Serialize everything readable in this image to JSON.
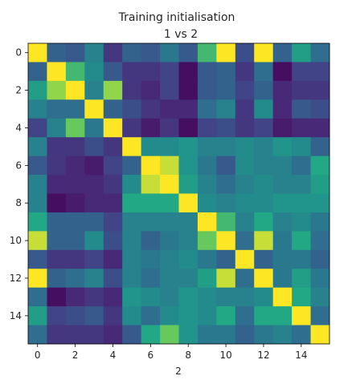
{
  "chart_data": {
    "type": "heatmap",
    "title": "Training initialisation",
    "subtitle": "1 vs 2",
    "xlabel": "2",
    "ylabel": "",
    "colormap": "viridis",
    "value_range": [
      0,
      1
    ],
    "x_ticks": [
      0,
      2,
      4,
      6,
      8,
      10,
      12,
      14
    ],
    "y_ticks": [
      0,
      2,
      4,
      6,
      8,
      10,
      12,
      14
    ],
    "matrix": [
      [
        1.0,
        0.4,
        0.35,
        0.55,
        0.2,
        0.4,
        0.35,
        0.5,
        0.35,
        0.8,
        1.0,
        0.3,
        1.0,
        0.4,
        0.7,
        0.45
      ],
      [
        0.4,
        1.0,
        0.8,
        0.6,
        0.35,
        0.2,
        0.2,
        0.25,
        0.05,
        0.35,
        0.4,
        0.2,
        0.45,
        0.05,
        0.25,
        0.25
      ],
      [
        0.7,
        0.9,
        1.0,
        0.55,
        0.9,
        0.2,
        0.15,
        0.25,
        0.05,
        0.35,
        0.4,
        0.25,
        0.4,
        0.15,
        0.2,
        0.2
      ],
      [
        0.55,
        0.45,
        0.45,
        1.0,
        0.4,
        0.3,
        0.2,
        0.15,
        0.15,
        0.45,
        0.55,
        0.2,
        0.6,
        0.15,
        0.35,
        0.3
      ],
      [
        0.25,
        0.55,
        0.85,
        0.5,
        1.0,
        0.2,
        0.1,
        0.2,
        0.05,
        0.25,
        0.3,
        0.2,
        0.25,
        0.1,
        0.15,
        0.15
      ],
      [
        0.55,
        0.2,
        0.2,
        0.3,
        0.2,
        1.0,
        0.6,
        0.6,
        0.65,
        0.55,
        0.55,
        0.6,
        0.55,
        0.65,
        0.6,
        0.4
      ],
      [
        0.35,
        0.2,
        0.15,
        0.1,
        0.25,
        0.4,
        1.0,
        0.95,
        0.65,
        0.5,
        0.35,
        0.6,
        0.55,
        0.55,
        0.45,
        0.75
      ],
      [
        0.55,
        0.15,
        0.15,
        0.15,
        0.2,
        0.6,
        0.95,
        1.0,
        0.7,
        0.55,
        0.45,
        0.55,
        0.6,
        0.55,
        0.55,
        0.7
      ],
      [
        0.55,
        0.05,
        0.1,
        0.15,
        0.15,
        0.75,
        0.75,
        0.75,
        1.0,
        0.6,
        0.55,
        0.6,
        0.6,
        0.65,
        0.65,
        0.65
      ],
      [
        0.75,
        0.4,
        0.4,
        0.4,
        0.25,
        0.55,
        0.55,
        0.55,
        0.55,
        1.0,
        0.8,
        0.55,
        0.75,
        0.55,
        0.6,
        0.5
      ],
      [
        0.95,
        0.4,
        0.4,
        0.6,
        0.3,
        0.55,
        0.4,
        0.5,
        0.55,
        0.85,
        1.0,
        0.45,
        0.95,
        0.5,
        0.75,
        0.45
      ],
      [
        0.35,
        0.2,
        0.2,
        0.25,
        0.15,
        0.55,
        0.5,
        0.55,
        0.6,
        0.5,
        0.4,
        1.0,
        0.4,
        0.5,
        0.5,
        0.4
      ],
      [
        1.0,
        0.4,
        0.45,
        0.55,
        0.3,
        0.55,
        0.45,
        0.55,
        0.55,
        0.7,
        0.95,
        0.45,
        1.0,
        0.5,
        0.7,
        0.5
      ],
      [
        0.45,
        0.05,
        0.15,
        0.2,
        0.15,
        0.65,
        0.6,
        0.55,
        0.65,
        0.6,
        0.55,
        0.55,
        0.6,
        1.0,
        0.75,
        0.55
      ],
      [
        0.7,
        0.25,
        0.3,
        0.35,
        0.2,
        0.6,
        0.45,
        0.6,
        0.65,
        0.6,
        0.75,
        0.45,
        0.75,
        0.75,
        1.0,
        0.45
      ],
      [
        0.45,
        0.2,
        0.2,
        0.2,
        0.15,
        0.35,
        0.75,
        0.85,
        0.65,
        0.5,
        0.5,
        0.4,
        0.5,
        0.55,
        0.45,
        1.0
      ]
    ]
  }
}
